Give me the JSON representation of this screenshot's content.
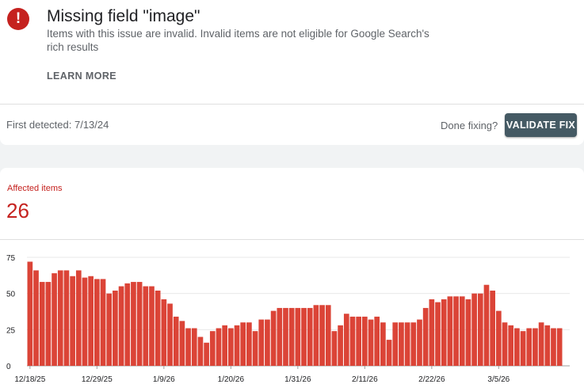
{
  "issue": {
    "icon": "error-exclamation-icon",
    "icon_glyph": "!",
    "title": "Missing field \"image\"",
    "description": "Items with this issue are invalid. Invalid items are not eligible for Google Search's rich results",
    "learn_more_label": "LEARN MORE",
    "first_detected": "First detected: 7/13/24",
    "done_fixing_label": "Done fixing?",
    "validate_label": "VALIDATE FIX",
    "colors": {
      "error": "#c5221f",
      "button": "#455a64"
    }
  },
  "metric": {
    "label": "Affected items",
    "value": "26"
  },
  "chart_data": {
    "type": "bar",
    "color": "#db4437",
    "ylim": [
      0,
      75
    ],
    "yticks": [
      0,
      25,
      50,
      75
    ],
    "xtick_labels": [
      "12/18/25",
      "12/29/25",
      "1/9/26",
      "1/20/26",
      "1/31/26",
      "2/11/26",
      "2/22/26",
      "3/5/26"
    ],
    "xtick_positions": [
      0,
      11,
      22,
      33,
      44,
      55,
      66,
      77
    ],
    "grid": true,
    "values": [
      72,
      66,
      58,
      58,
      64,
      66,
      66,
      62,
      66,
      61,
      62,
      60,
      60,
      50,
      52,
      55,
      57,
      58,
      58,
      55,
      55,
      52,
      46,
      43,
      34,
      31,
      26,
      26,
      20,
      16,
      24,
      26,
      28,
      26,
      28,
      30,
      30,
      24,
      32,
      32,
      38,
      40,
      40,
      40,
      40,
      40,
      40,
      42,
      42,
      42,
      24,
      28,
      36,
      34,
      34,
      34,
      32,
      34,
      30,
      18,
      30,
      30,
      30,
      30,
      32,
      40,
      46,
      44,
      46,
      48,
      48,
      48,
      46,
      50,
      50,
      56,
      52,
      38,
      30,
      28,
      26,
      24,
      26,
      26,
      30,
      28,
      26,
      26
    ]
  }
}
